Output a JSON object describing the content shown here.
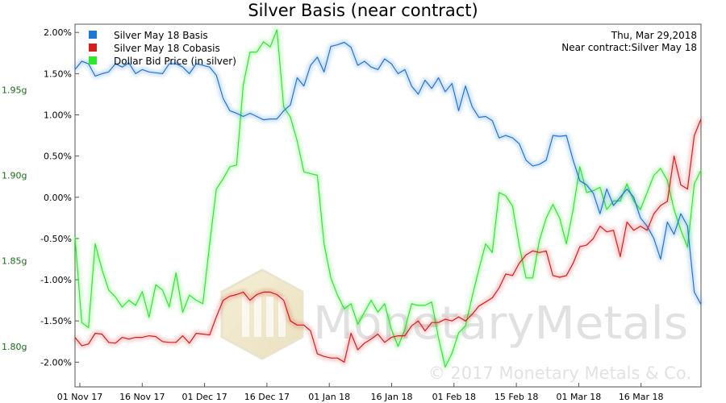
{
  "chart_data": {
    "type": "line",
    "title": "Silver Basis (near contract)",
    "x_tick_labels": [
      "01 Nov 17",
      "16 Nov 17",
      "01 Dec 17",
      "16 Dec 17",
      "01 Jan 18",
      "16 Jan 18",
      "01 Feb 18",
      "15 Feb 18",
      "01 Mar 18",
      "16 Mar 18"
    ],
    "left_axis": {
      "ylim": [
        -2.3,
        2.1
      ],
      "tick_values": [
        2.0,
        1.5,
        1.0,
        0.5,
        0.0,
        -0.5,
        -1.0,
        -1.5,
        -2.0
      ],
      "tick_labels": [
        "2.00%",
        "1.50%",
        "1.00%",
        "0.50%",
        "0.00%",
        "-0.50%",
        "-1.00%",
        "-1.50%",
        "-2.00%"
      ]
    },
    "right_axis": {
      "ylim": [
        1.7764,
        1.9883
      ],
      "tick_values": [
        1.95,
        1.9,
        1.85,
        1.8
      ],
      "tick_labels": [
        "1.95g",
        "1.90g",
        "1.85g",
        "1.80g"
      ]
    },
    "annotation": {
      "date": "Thu, Mar 29,2018",
      "contract": "Near contract:Silver May 18"
    },
    "watermark": {
      "name": "MonetaryMetals",
      "copyright": "© 2017 Monetary Metals & Co."
    },
    "colors": {
      "basis": "#1f77d4",
      "cobasis": "#d41f1f",
      "bid": "#2ee82e"
    },
    "series": [
      {
        "name": "Silver May 18 Basis",
        "axis": "left",
        "values": [
          1.55,
          1.65,
          1.62,
          1.47,
          1.5,
          1.52,
          1.62,
          1.58,
          1.63,
          1.5,
          1.55,
          1.52,
          1.51,
          1.5,
          1.62,
          1.62,
          1.58,
          1.5,
          1.62,
          1.6,
          1.58,
          1.48,
          1.2,
          1.05,
          1.02,
          0.98,
          1.02,
          0.98,
          0.94,
          0.95,
          0.95,
          1.05,
          1.12,
          1.45,
          1.35,
          1.6,
          1.7,
          1.52,
          1.83,
          1.85,
          1.88,
          1.82,
          1.6,
          1.65,
          1.58,
          1.55,
          1.68,
          1.62,
          1.5,
          1.55,
          1.35,
          1.25,
          1.42,
          1.32,
          1.45,
          1.28,
          1.38,
          1.05,
          1.35,
          1.1,
          0.97,
          0.98,
          0.93,
          0.72,
          0.75,
          0.72,
          0.65,
          0.45,
          0.38,
          0.4,
          0.45,
          0.75,
          0.74,
          0.75,
          0.45,
          0.2,
          0.15,
          0.05,
          -0.2,
          0.1,
          -0.1,
          0.0,
          0.1,
          0.0,
          -0.25,
          -0.35,
          -0.5,
          -0.75,
          -0.3,
          -0.45,
          -0.2,
          -0.35,
          -1.15,
          -1.3
        ]
      },
      {
        "name": "Silver May 18 Cobasis",
        "axis": "left",
        "values": [
          -1.7,
          -1.8,
          -1.78,
          -1.65,
          -1.66,
          -1.76,
          -1.77,
          -1.7,
          -1.72,
          -1.7,
          -1.7,
          -1.68,
          -1.69,
          -1.75,
          -1.76,
          -1.76,
          -1.68,
          -1.77,
          -1.65,
          -1.66,
          -1.67,
          -1.45,
          -1.25,
          -1.2,
          -1.18,
          -1.15,
          -1.25,
          -1.18,
          -1.15,
          -1.15,
          -1.18,
          -1.25,
          -1.5,
          -1.55,
          -1.55,
          -1.62,
          -1.9,
          -1.93,
          -1.95,
          -1.95,
          -2.0,
          -1.65,
          -1.85,
          -1.77,
          -1.72,
          -1.66,
          -1.76,
          -1.7,
          -1.68,
          -1.68,
          -1.56,
          -1.5,
          -1.62,
          -1.52,
          -1.52,
          -1.48,
          -1.5,
          -1.45,
          -1.5,
          -1.42,
          -1.32,
          -1.27,
          -1.22,
          -1.1,
          -0.93,
          -0.95,
          -0.8,
          -0.7,
          -0.65,
          -0.67,
          -0.65,
          -0.95,
          -0.97,
          -0.95,
          -0.8,
          -0.6,
          -0.58,
          -0.5,
          -0.35,
          -0.42,
          -0.4,
          -0.72,
          -0.3,
          -0.4,
          -0.35,
          -0.4,
          -0.2,
          -0.1,
          -0.05,
          0.5,
          0.15,
          0.1,
          0.75,
          0.95
        ]
      },
      {
        "name": "Dollar Bid Price (in silver)",
        "axis": "right",
        "values": [
          1.864,
          1.814,
          1.811,
          1.86,
          1.845,
          1.833,
          1.829,
          1.823,
          1.827,
          1.824,
          1.832,
          1.817,
          1.836,
          1.833,
          1.823,
          1.843,
          1.82,
          1.83,
          1.827,
          1.825,
          1.86,
          1.892,
          1.898,
          1.905,
          1.906,
          1.953,
          1.972,
          1.972,
          1.978,
          1.975,
          1.985,
          1.94,
          1.934,
          1.92,
          1.902,
          1.901,
          1.9,
          1.86,
          1.84,
          1.83,
          1.822,
          1.825,
          1.813,
          1.82,
          1.827,
          1.82,
          1.825,
          1.81,
          1.8,
          1.81,
          1.825,
          1.824,
          1.824,
          1.826,
          1.805,
          1.788,
          1.796,
          1.808,
          1.812,
          1.829,
          1.845,
          1.86,
          1.855,
          1.89,
          1.888,
          1.882,
          1.859,
          1.84,
          1.84,
          1.862,
          1.875,
          1.883,
          1.875,
          1.86,
          1.88,
          1.905,
          1.89,
          1.891,
          1.893,
          1.88,
          1.885,
          1.885,
          1.895,
          1.885,
          1.88,
          1.89,
          1.9,
          1.904,
          1.897,
          1.88,
          1.868,
          1.858,
          1.895,
          1.903
        ]
      }
    ]
  }
}
